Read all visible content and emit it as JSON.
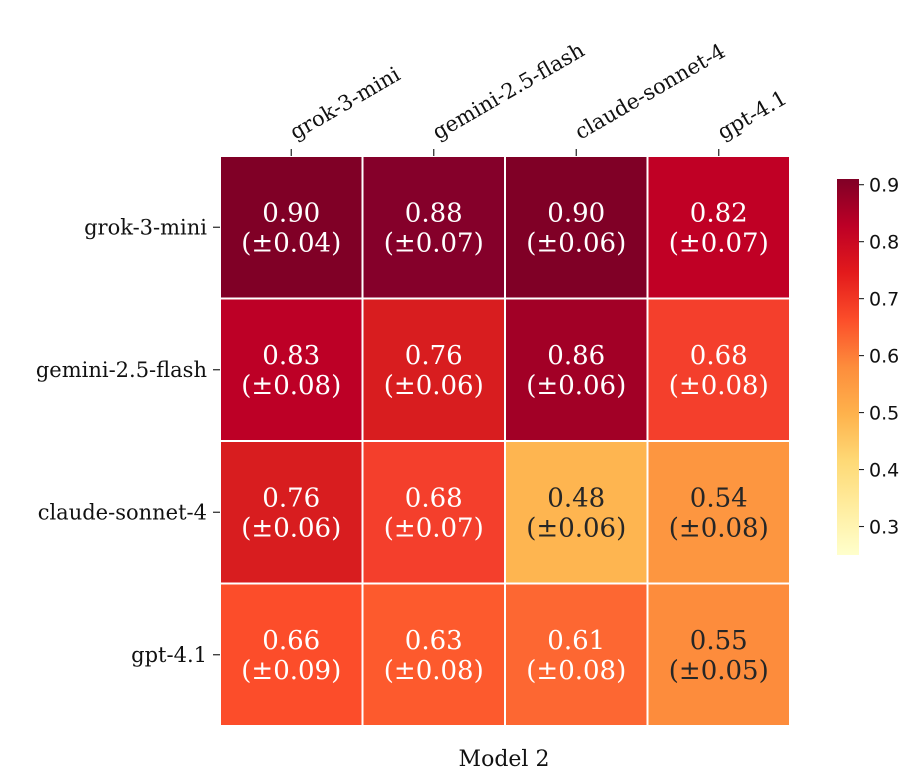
{
  "chart_data": {
    "type": "heatmap",
    "title": "",
    "xlabel": "Model 2",
    "ylabel": "",
    "x_categories": [
      "grok-3-mini",
      "gemini-2.5-flash",
      "claude-sonnet-4",
      "gpt-4.1"
    ],
    "y_categories": [
      "grok-3-mini",
      "gemini-2.5-flash",
      "claude-sonnet-4",
      "gpt-4.1"
    ],
    "values": [
      [
        0.9,
        0.88,
        0.9,
        0.82
      ],
      [
        0.83,
        0.76,
        0.86,
        0.68
      ],
      [
        0.76,
        0.68,
        0.48,
        0.54
      ],
      [
        0.66,
        0.63,
        0.61,
        0.55
      ]
    ],
    "errors": [
      [
        0.04,
        0.07,
        0.06,
        0.07
      ],
      [
        0.08,
        0.06,
        0.06,
        0.08
      ],
      [
        0.06,
        0.07,
        0.06,
        0.08
      ],
      [
        0.09,
        0.08,
        0.08,
        0.05
      ]
    ],
    "cell_labels": [
      [
        [
          "0.90",
          "(±0.04)"
        ],
        [
          "0.88",
          "(±0.07)"
        ],
        [
          "0.90",
          "(±0.06)"
        ],
        [
          "0.82",
          "(±0.07)"
        ]
      ],
      [
        [
          "0.83",
          "(±0.08)"
        ],
        [
          "0.76",
          "(±0.06)"
        ],
        [
          "0.86",
          "(±0.06)"
        ],
        [
          "0.68",
          "(±0.08)"
        ]
      ],
      [
        [
          "0.76",
          "(±0.06)"
        ],
        [
          "0.68",
          "(±0.07)"
        ],
        [
          "0.48",
          "(±0.06)"
        ],
        [
          "0.54",
          "(±0.08)"
        ]
      ],
      [
        [
          "0.66",
          "(±0.09)"
        ],
        [
          "0.63",
          "(±0.08)"
        ],
        [
          "0.61",
          "(±0.08)"
        ],
        [
          "0.55",
          "(±0.05)"
        ]
      ]
    ],
    "x_axis_position": "top",
    "colormap": "YlOrRd",
    "colorbar": {
      "range": [
        0.25,
        0.91
      ],
      "ticks": [
        0.3,
        0.4,
        0.5,
        0.6,
        0.7,
        0.8,
        0.9
      ],
      "tick_labels": [
        "0.3",
        "0.4",
        "0.5",
        "0.6",
        "0.7",
        "0.8",
        "0.9"
      ]
    },
    "colors": {
      "0.90": "#800026",
      "0.88": "#85002a",
      "0.86": "#a20026",
      "0.83": "#bd0026",
      "0.82": "#c00025",
      "0.76": "#d81d1f",
      "0.68": "#f43f2c",
      "0.66": "#fc4d2a",
      "0.63": "#fd5a2d",
      "0.61": "#fd6732",
      "0.55": "#fd8c3c",
      "0.54": "#fd9640",
      "0.48": "#feb550"
    },
    "grid": false,
    "legend": "none"
  }
}
